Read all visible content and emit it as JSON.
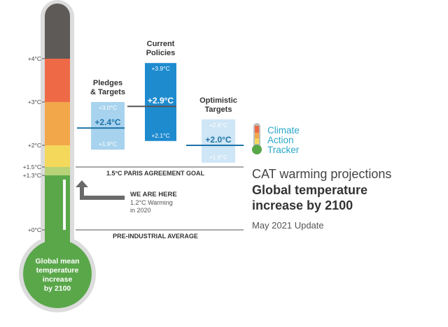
{
  "chart_data": {
    "type": "range",
    "yunit": "°C",
    "ylim": [
      0,
      5
    ],
    "ticks": [
      {
        "value": 4,
        "label": "+4°C"
      },
      {
        "value": 3,
        "label": "+3°C"
      },
      {
        "value": 2,
        "label": "+2°C"
      },
      {
        "value": 1.5,
        "label": "+1.5°C"
      },
      {
        "value": 1.3,
        "label": "+1.3°C"
      },
      {
        "value": 0,
        "label": "+0°C"
      }
    ],
    "thermometer_bands": [
      {
        "from": 4,
        "to": 5,
        "color": "#5e5a58"
      },
      {
        "from": 3,
        "to": 4,
        "color": "#ee6a46"
      },
      {
        "from": 2,
        "to": 3,
        "color": "#f2a74b"
      },
      {
        "from": 1.5,
        "to": 2,
        "color": "#f4d85b"
      },
      {
        "from": 1.3,
        "to": 1.5,
        "color": "#b7d277"
      },
      {
        "from": 0,
        "to": 1.3,
        "color": "#5aa74a"
      }
    ],
    "scenarios": [
      {
        "title": [
          "Pledges",
          "& Targets"
        ],
        "low": 1.9,
        "mid": 2.4,
        "high": 3.0,
        "low_label": "+1.9°C",
        "mid_label": "+2.4°C",
        "high_label": "+3.0°C",
        "box_color": "#a8d3ee",
        "line_color": "#1d73a8",
        "mid_color": "#1d73a8"
      },
      {
        "title": [
          "Current",
          "Policies"
        ],
        "low": 2.1,
        "mid": 2.9,
        "high": 3.9,
        "low_label": "+2.1°C",
        "mid_label": "+2.9°C",
        "high_label": "+3.9°C",
        "box_color": "#1f8bcf",
        "line_color": "#555555",
        "mid_color": "#ffffff"
      },
      {
        "title": [
          "Optimistic",
          "Targets"
        ],
        "low": 1.6,
        "mid": 2.0,
        "high": 2.6,
        "low_label": "+1.6°C",
        "mid_label": "+2.0°C",
        "high_label": "+2.6°C",
        "box_color": "#cfe6f6",
        "line_color": "#1d73a8",
        "mid_color": "#1d73a8"
      }
    ],
    "reference_lines": [
      {
        "value": 1.5,
        "label": "1.5°C PARIS AGREEMENT GOAL"
      },
      {
        "value": 0,
        "label": "PRE-INDUSTRIAL AVERAGE"
      }
    ],
    "current": {
      "value": 1.2,
      "title": "WE ARE HERE",
      "sub": [
        "1.2°C Warming",
        "in 2020"
      ]
    },
    "bulb_label": [
      "Global mean",
      "temperature",
      "increase",
      "by 2100"
    ]
  },
  "logo": {
    "lines": [
      "Climate",
      "Action",
      "Tracker"
    ]
  },
  "heading": {
    "title": "CAT warming projections",
    "subtitle": [
      "Global temperature",
      "increase by 2100"
    ],
    "date": "May 2021 Update"
  }
}
